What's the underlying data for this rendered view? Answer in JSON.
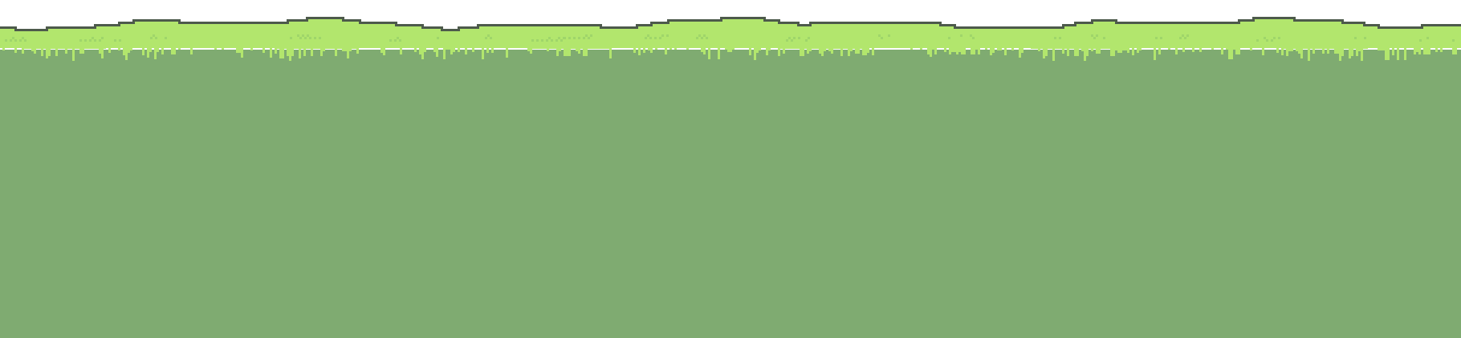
{
  "scene": {
    "type": "platformer-ground-tile",
    "background_color": "#ffffff"
  },
  "colors": {
    "outline": "#4d5a4b",
    "grass_light": "#b2e66d",
    "grass_speck": "#9fd56a",
    "soil": "#7fab71"
  }
}
